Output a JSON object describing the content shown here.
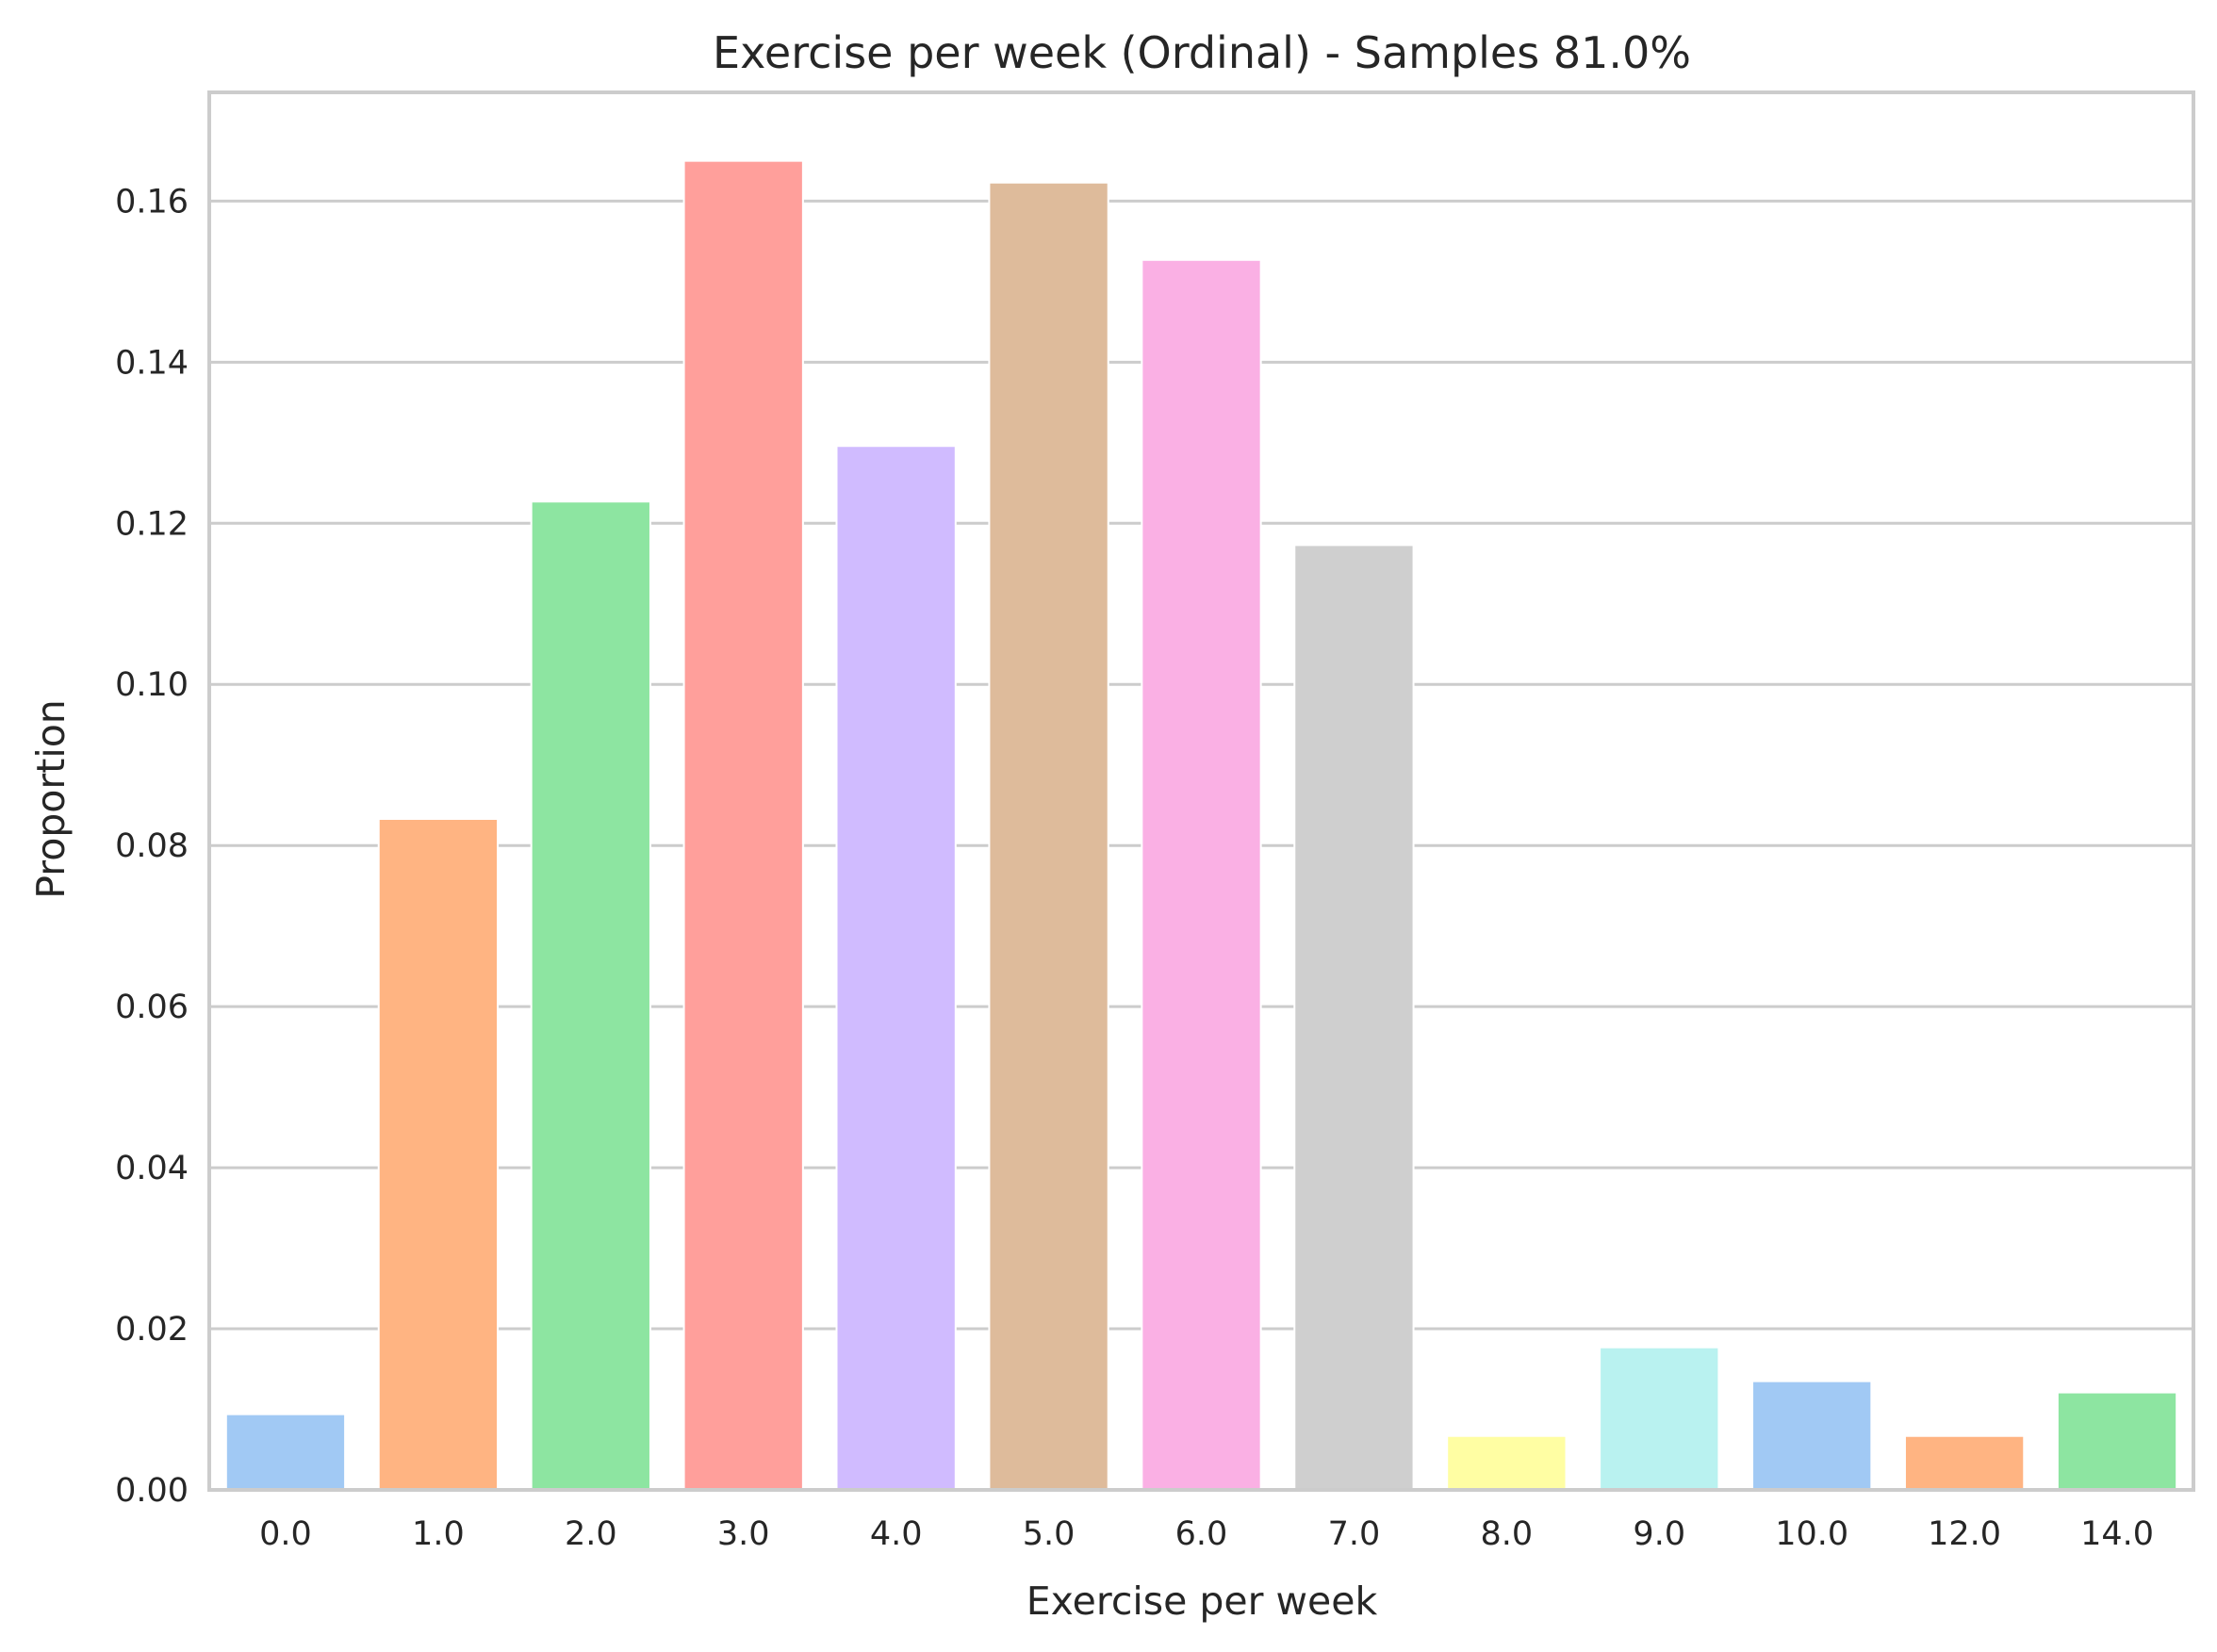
{
  "chart_data": {
    "type": "bar",
    "title": "Exercise per week (Ordinal) - Samples 81.0%",
    "xlabel": "Exercise per week",
    "ylabel": "Proportion",
    "categories": [
      "0.0",
      "1.0",
      "2.0",
      "3.0",
      "4.0",
      "5.0",
      "6.0",
      "7.0",
      "8.0",
      "9.0",
      "10.0",
      "12.0",
      "14.0"
    ],
    "values": [
      0.0094,
      0.0833,
      0.1227,
      0.165,
      0.1296,
      0.1623,
      0.1527,
      0.1173,
      0.0067,
      0.0177,
      0.0135,
      0.0067,
      0.0121
    ],
    "colors": [
      "#a1c9f4",
      "#ffb482",
      "#8de5a1",
      "#ff9f9b",
      "#d0bbff",
      "#debb9b",
      "#fab0e4",
      "#cfcfcf",
      "#fffea3",
      "#b9f2f0",
      "#a1c9f4",
      "#ffb482",
      "#8de5a1"
    ],
    "ylim": [
      0,
      0.1735
    ],
    "yticks": [
      0.0,
      0.02,
      0.04,
      0.06,
      0.08,
      0.1,
      0.12,
      0.14,
      0.16
    ],
    "ytick_labels": [
      "0.00",
      "0.02",
      "0.04",
      "0.06",
      "0.08",
      "0.10",
      "0.12",
      "0.14",
      "0.16"
    ],
    "grid": "horizontal",
    "legend": "none"
  }
}
